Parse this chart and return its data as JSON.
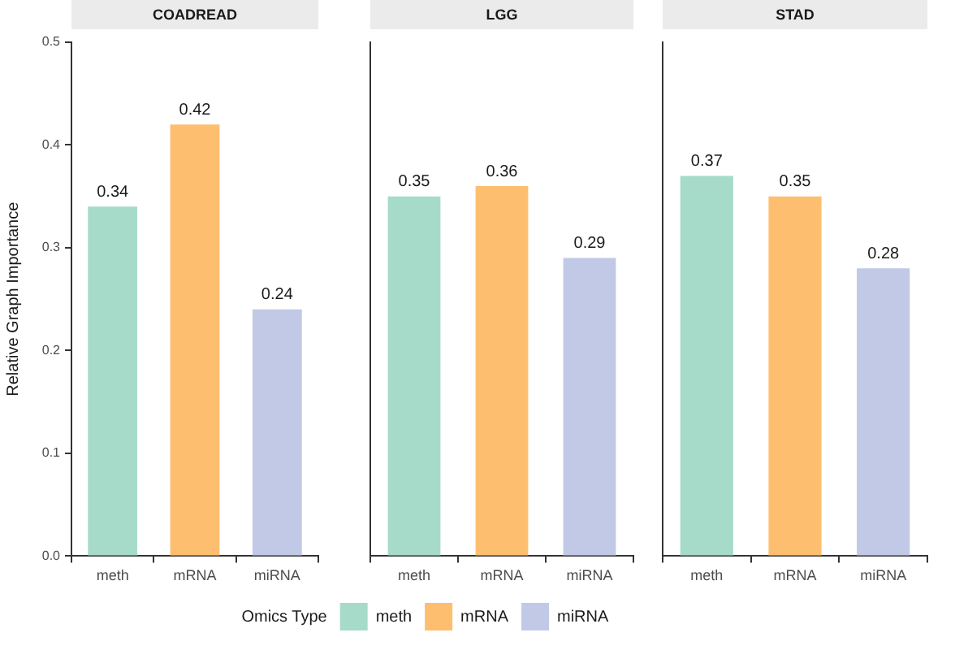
{
  "chart_data": [
    {
      "type": "bar",
      "title": "COADREAD",
      "ylabel": "Relative Graph Importance",
      "categories": [
        "meth",
        "mRNA",
        "miRNA"
      ],
      "series": [
        {
          "name": "meth",
          "color": "#a6dbc9",
          "values": [
            0.34,
            null,
            null
          ]
        },
        {
          "name": "mRNA",
          "color": "#fdbf6f",
          "values": [
            null,
            0.42,
            null
          ]
        },
        {
          "name": "miRNA",
          "color": "#c1c9e6",
          "values": [
            null,
            null,
            0.24
          ]
        }
      ],
      "ylim": [
        0,
        0.5
      ],
      "yticks": [
        {
          "value": 0,
          "label": "0.0"
        },
        0.1,
        0.2,
        0.3,
        0.4,
        0.5
      ],
      "data_labels": true,
      "grid": false,
      "legend": "bottom",
      "legend_title": "Omics Type"
    },
    {
      "type": "bar",
      "title": "LGG",
      "categories": [
        "meth",
        "mRNA",
        "miRNA"
      ],
      "series": [
        {
          "color": "#a6dbc9",
          "values": [
            0.35,
            null,
            null
          ]
        },
        {
          "color": "#fdbf6f",
          "values": [
            null,
            0.36,
            null
          ]
        },
        {
          "color": "#c1c9e6",
          "values": [
            null,
            null,
            0.29
          ]
        }
      ],
      "ylim": [
        0,
        0.5
      ],
      "yticks": [
        0,
        0.1,
        0.2,
        0.3,
        0.4,
        0.5
      ],
      "data_labels": true,
      "grid": false,
      "tick_labels": "x"
    },
    {
      "type": "bar",
      "title": "STAD",
      "categories": [
        "meth",
        "mRNA",
        "miRNA"
      ],
      "series": [
        {
          "color": "#a6dbc9",
          "values": [
            0.37,
            null,
            null
          ]
        },
        {
          "color": "#fdbf6f",
          "values": [
            null,
            0.35,
            null
          ]
        },
        {
          "color": "#c1c9e6",
          "values": [
            null,
            null,
            0.28
          ]
        }
      ],
      "ylim": [
        0,
        0.5
      ],
      "yticks": [
        0,
        0.1,
        0.2,
        0.3,
        0.4,
        0.5
      ],
      "data_labels": true,
      "grid": false,
      "tick_labels": "x"
    }
  ]
}
